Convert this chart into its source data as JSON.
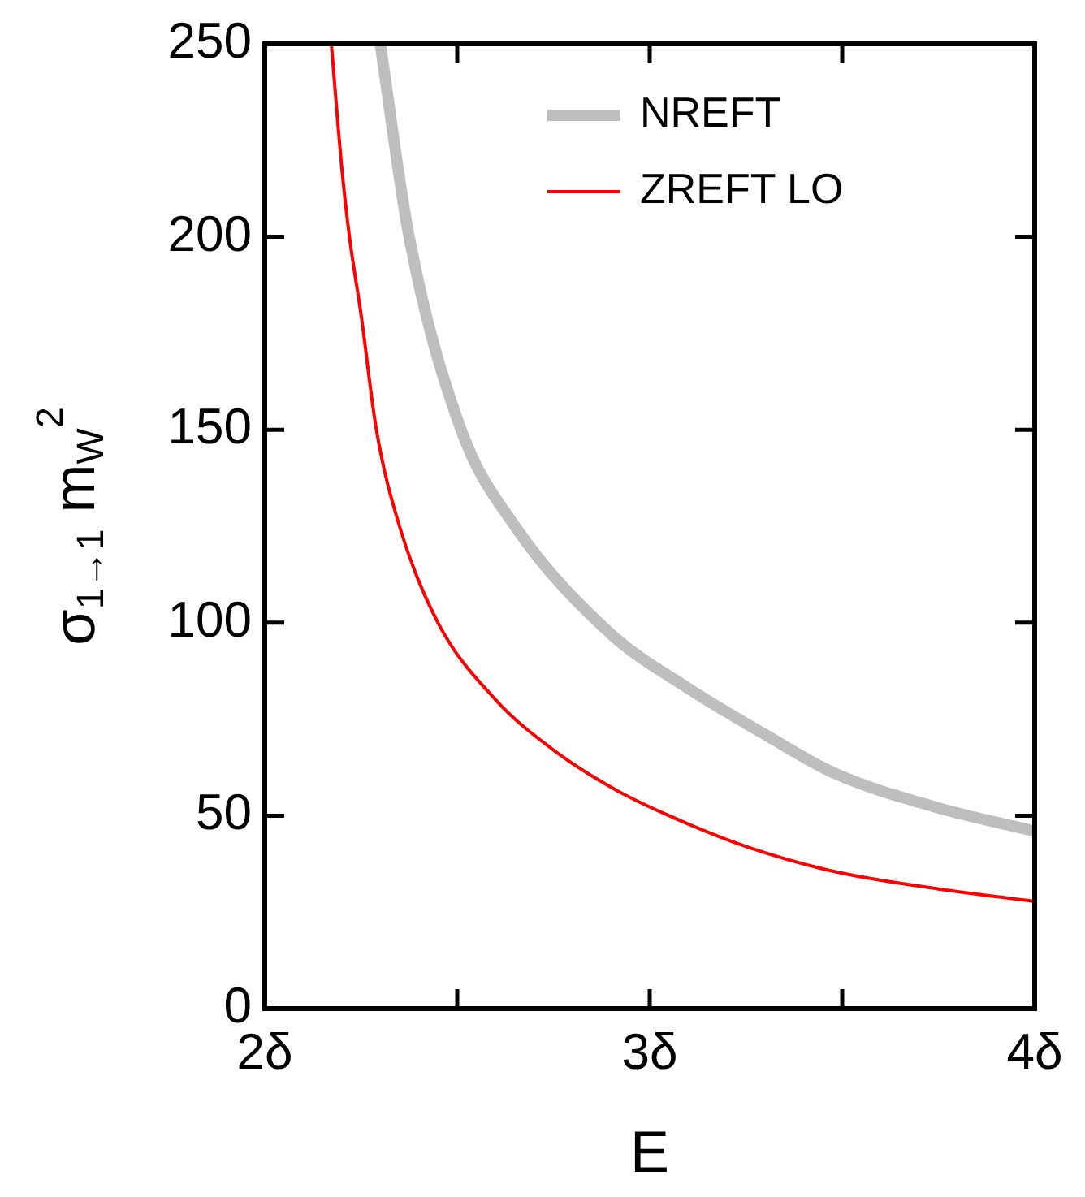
{
  "chart_data": {
    "type": "line",
    "xlabel": "E",
    "ylabel": "σ$_{1→1}$ m$_{W}$$^{2}$",
    "xlim": [
      2,
      4
    ],
    "xticks": [
      {
        "value": 2,
        "label": "2δ"
      },
      {
        "value": 2.5,
        "label": null
      },
      {
        "value": 3,
        "label": "3δ"
      },
      {
        "value": 3.5,
        "label": null
      },
      {
        "value": 4,
        "label": "4δ"
      }
    ],
    "ylim": [
      0,
      250
    ],
    "yticks": [
      0,
      50,
      100,
      150,
      200,
      250
    ],
    "grid": false,
    "legend": "top right",
    "marker": "none",
    "line_style": "solid",
    "series": [
      {
        "name": "NREFT",
        "color": "#bebebe",
        "x": [
          2.3,
          2.375,
          2.51,
          2.65,
          2.9,
          3.1,
          3.3,
          3.48,
          3.75,
          4
        ],
        "values": [
          250,
          200,
          150,
          125,
          97,
          83,
          71,
          61,
          52,
          46
        ]
      },
      {
        "name": "ZREFT LO",
        "color": "#ff0000",
        "x": [
          2.173,
          2.2,
          2.22,
          2.25,
          2.29,
          2.35,
          2.45,
          2.6,
          2.75,
          2.915,
          3.05,
          3.25,
          3.48,
          3.75,
          4
        ],
        "values": [
          250,
          218,
          200,
          180,
          150,
          125,
          100,
          80,
          67,
          56.5,
          50,
          42,
          35.5,
          31,
          27.8
        ]
      }
    ]
  }
}
